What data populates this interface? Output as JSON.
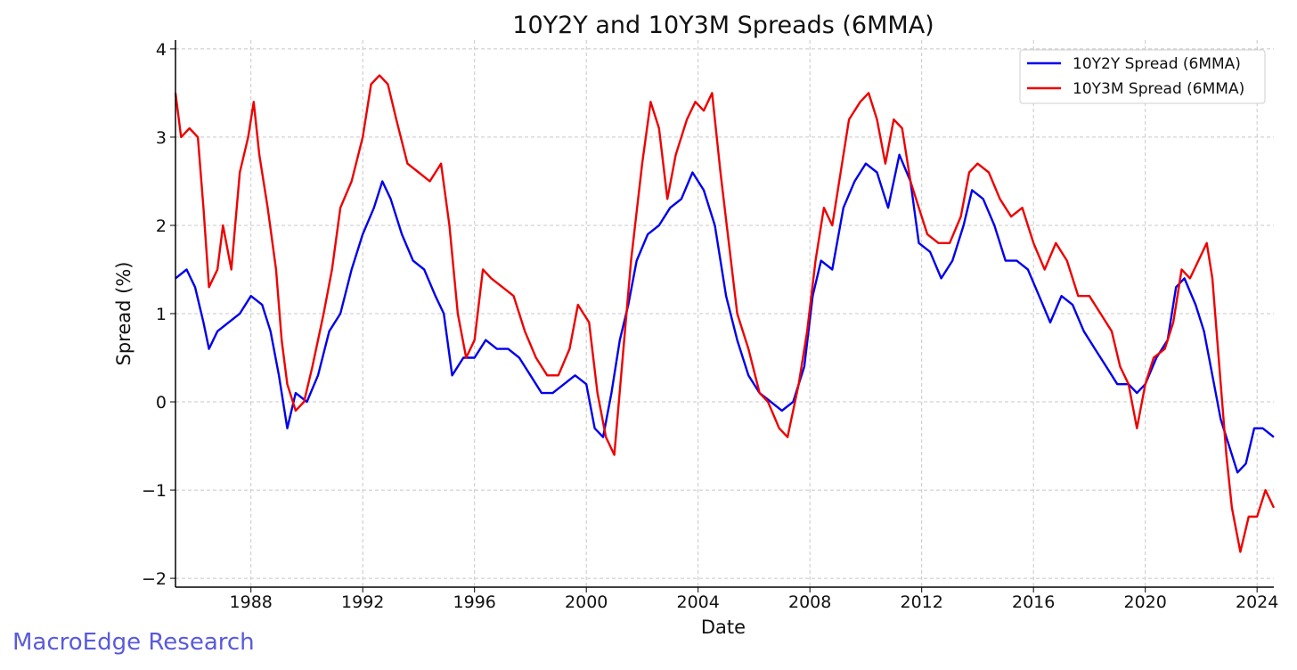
{
  "watermark": "MacroEdge Research",
  "chart_data": {
    "type": "line",
    "title": "10Y2Y and 10Y3M Spreads (6MMA)",
    "xlabel": "Date",
    "ylabel": "Spread (%)",
    "xlim": [
      1985.3,
      2024.6
    ],
    "ylim": [
      -2.1,
      4.1
    ],
    "xticks": [
      1988,
      1992,
      1996,
      2000,
      2004,
      2008,
      2012,
      2016,
      2020,
      2024
    ],
    "yticks": [
      -2,
      -1,
      0,
      1,
      2,
      3,
      4
    ],
    "ytick_labels": [
      "−2",
      "−1",
      "0",
      "1",
      "2",
      "3",
      "4"
    ],
    "grid": true,
    "legend_position": "top-right",
    "series": [
      {
        "name": "10Y2Y Spread (6MMA)",
        "color": "#0000ee",
        "points": [
          [
            1985.3,
            1.4
          ],
          [
            1985.7,
            1.5
          ],
          [
            1986.0,
            1.3
          ],
          [
            1986.3,
            0.9
          ],
          [
            1986.5,
            0.6
          ],
          [
            1986.8,
            0.8
          ],
          [
            1987.2,
            0.9
          ],
          [
            1987.6,
            1.0
          ],
          [
            1988.0,
            1.2
          ],
          [
            1988.4,
            1.1
          ],
          [
            1988.7,
            0.8
          ],
          [
            1989.0,
            0.3
          ],
          [
            1989.3,
            -0.3
          ],
          [
            1989.6,
            0.1
          ],
          [
            1990.0,
            0.0
          ],
          [
            1990.4,
            0.3
          ],
          [
            1990.8,
            0.8
          ],
          [
            1991.2,
            1.0
          ],
          [
            1991.6,
            1.5
          ],
          [
            1992.0,
            1.9
          ],
          [
            1992.4,
            2.2
          ],
          [
            1992.7,
            2.5
          ],
          [
            1993.0,
            2.3
          ],
          [
            1993.4,
            1.9
          ],
          [
            1993.8,
            1.6
          ],
          [
            1994.2,
            1.5
          ],
          [
            1994.6,
            1.2
          ],
          [
            1994.9,
            1.0
          ],
          [
            1995.2,
            0.3
          ],
          [
            1995.6,
            0.5
          ],
          [
            1996.0,
            0.5
          ],
          [
            1996.4,
            0.7
          ],
          [
            1996.8,
            0.6
          ],
          [
            1997.2,
            0.6
          ],
          [
            1997.6,
            0.5
          ],
          [
            1998.0,
            0.3
          ],
          [
            1998.4,
            0.1
          ],
          [
            1998.8,
            0.1
          ],
          [
            1999.2,
            0.2
          ],
          [
            1999.6,
            0.3
          ],
          [
            2000.0,
            0.2
          ],
          [
            2000.3,
            -0.3
          ],
          [
            2000.6,
            -0.4
          ],
          [
            2000.9,
            0.1
          ],
          [
            2001.2,
            0.7
          ],
          [
            2001.5,
            1.1
          ],
          [
            2001.8,
            1.6
          ],
          [
            2002.2,
            1.9
          ],
          [
            2002.6,
            2.0
          ],
          [
            2003.0,
            2.2
          ],
          [
            2003.4,
            2.3
          ],
          [
            2003.8,
            2.6
          ],
          [
            2004.2,
            2.4
          ],
          [
            2004.6,
            2.0
          ],
          [
            2005.0,
            1.2
          ],
          [
            2005.4,
            0.7
          ],
          [
            2005.8,
            0.3
          ],
          [
            2006.2,
            0.1
          ],
          [
            2006.6,
            0.0
          ],
          [
            2007.0,
            -0.1
          ],
          [
            2007.4,
            0.0
          ],
          [
            2007.8,
            0.4
          ],
          [
            2008.1,
            1.2
          ],
          [
            2008.4,
            1.6
          ],
          [
            2008.8,
            1.5
          ],
          [
            2009.2,
            2.2
          ],
          [
            2009.6,
            2.5
          ],
          [
            2010.0,
            2.7
          ],
          [
            2010.4,
            2.6
          ],
          [
            2010.8,
            2.2
          ],
          [
            2011.2,
            2.8
          ],
          [
            2011.6,
            2.5
          ],
          [
            2011.9,
            1.8
          ],
          [
            2012.3,
            1.7
          ],
          [
            2012.7,
            1.4
          ],
          [
            2013.1,
            1.6
          ],
          [
            2013.5,
            2.0
          ],
          [
            2013.8,
            2.4
          ],
          [
            2014.2,
            2.3
          ],
          [
            2014.6,
            2.0
          ],
          [
            2015.0,
            1.6
          ],
          [
            2015.4,
            1.6
          ],
          [
            2015.8,
            1.5
          ],
          [
            2016.2,
            1.2
          ],
          [
            2016.6,
            0.9
          ],
          [
            2017.0,
            1.2
          ],
          [
            2017.4,
            1.1
          ],
          [
            2017.8,
            0.8
          ],
          [
            2018.2,
            0.6
          ],
          [
            2018.6,
            0.4
          ],
          [
            2019.0,
            0.2
          ],
          [
            2019.4,
            0.2
          ],
          [
            2019.7,
            0.1
          ],
          [
            2020.0,
            0.2
          ],
          [
            2020.4,
            0.5
          ],
          [
            2020.8,
            0.7
          ],
          [
            2021.1,
            1.3
          ],
          [
            2021.4,
            1.4
          ],
          [
            2021.8,
            1.1
          ],
          [
            2022.1,
            0.8
          ],
          [
            2022.4,
            0.3
          ],
          [
            2022.7,
            -0.2
          ],
          [
            2023.0,
            -0.5
          ],
          [
            2023.3,
            -0.8
          ],
          [
            2023.6,
            -0.7
          ],
          [
            2023.9,
            -0.3
          ],
          [
            2024.2,
            -0.3
          ],
          [
            2024.6,
            -0.4
          ]
        ]
      },
      {
        "name": "10Y3M Spread (6MMA)",
        "color": "#ee0000",
        "points": [
          [
            1985.3,
            3.5
          ],
          [
            1985.5,
            3.0
          ],
          [
            1985.8,
            3.1
          ],
          [
            1986.1,
            3.0
          ],
          [
            1986.3,
            2.2
          ],
          [
            1986.5,
            1.3
          ],
          [
            1986.8,
            1.5
          ],
          [
            1987.0,
            2.0
          ],
          [
            1987.3,
            1.5
          ],
          [
            1987.6,
            2.6
          ],
          [
            1987.9,
            3.0
          ],
          [
            1988.1,
            3.4
          ],
          [
            1988.3,
            2.8
          ],
          [
            1988.6,
            2.2
          ],
          [
            1988.9,
            1.5
          ],
          [
            1989.1,
            0.7
          ],
          [
            1989.3,
            0.2
          ],
          [
            1989.6,
            -0.1
          ],
          [
            1989.9,
            0.0
          ],
          [
            1990.2,
            0.4
          ],
          [
            1990.6,
            1.0
          ],
          [
            1990.9,
            1.5
          ],
          [
            1991.2,
            2.2
          ],
          [
            1991.6,
            2.5
          ],
          [
            1992.0,
            3.0
          ],
          [
            1992.3,
            3.6
          ],
          [
            1992.6,
            3.7
          ],
          [
            1992.9,
            3.6
          ],
          [
            1993.2,
            3.2
          ],
          [
            1993.6,
            2.7
          ],
          [
            1994.0,
            2.6
          ],
          [
            1994.4,
            2.5
          ],
          [
            1994.8,
            2.7
          ],
          [
            1995.1,
            2.0
          ],
          [
            1995.4,
            1.0
          ],
          [
            1995.7,
            0.5
          ],
          [
            1996.0,
            0.7
          ],
          [
            1996.3,
            1.5
          ],
          [
            1996.6,
            1.4
          ],
          [
            1997.0,
            1.3
          ],
          [
            1997.4,
            1.2
          ],
          [
            1997.8,
            0.8
          ],
          [
            1998.2,
            0.5
          ],
          [
            1998.6,
            0.3
          ],
          [
            1999.0,
            0.3
          ],
          [
            1999.4,
            0.6
          ],
          [
            1999.7,
            1.1
          ],
          [
            2000.1,
            0.9
          ],
          [
            2000.4,
            0.1
          ],
          [
            2000.7,
            -0.4
          ],
          [
            2001.0,
            -0.6
          ],
          [
            2001.3,
            0.5
          ],
          [
            2001.6,
            1.6
          ],
          [
            2002.0,
            2.7
          ],
          [
            2002.3,
            3.4
          ],
          [
            2002.6,
            3.1
          ],
          [
            2002.9,
            2.3
          ],
          [
            2003.2,
            2.8
          ],
          [
            2003.6,
            3.2
          ],
          [
            2003.9,
            3.4
          ],
          [
            2004.2,
            3.3
          ],
          [
            2004.5,
            3.5
          ],
          [
            2004.8,
            2.6
          ],
          [
            2005.1,
            1.8
          ],
          [
            2005.4,
            1.0
          ],
          [
            2005.8,
            0.6
          ],
          [
            2006.2,
            0.1
          ],
          [
            2006.5,
            0.0
          ],
          [
            2006.9,
            -0.3
          ],
          [
            2007.2,
            -0.4
          ],
          [
            2007.6,
            0.2
          ],
          [
            2007.9,
            0.8
          ],
          [
            2008.2,
            1.6
          ],
          [
            2008.5,
            2.2
          ],
          [
            2008.8,
            2.0
          ],
          [
            2009.1,
            2.6
          ],
          [
            2009.4,
            3.2
          ],
          [
            2009.8,
            3.4
          ],
          [
            2010.1,
            3.5
          ],
          [
            2010.4,
            3.2
          ],
          [
            2010.7,
            2.7
          ],
          [
            2011.0,
            3.2
          ],
          [
            2011.3,
            3.1
          ],
          [
            2011.6,
            2.5
          ],
          [
            2011.9,
            2.2
          ],
          [
            2012.2,
            1.9
          ],
          [
            2012.6,
            1.8
          ],
          [
            2013.0,
            1.8
          ],
          [
            2013.4,
            2.1
          ],
          [
            2013.7,
            2.6
          ],
          [
            2014.0,
            2.7
          ],
          [
            2014.4,
            2.6
          ],
          [
            2014.8,
            2.3
          ],
          [
            2015.2,
            2.1
          ],
          [
            2015.6,
            2.2
          ],
          [
            2016.0,
            1.8
          ],
          [
            2016.4,
            1.5
          ],
          [
            2016.8,
            1.8
          ],
          [
            2017.2,
            1.6
          ],
          [
            2017.6,
            1.2
          ],
          [
            2018.0,
            1.2
          ],
          [
            2018.4,
            1.0
          ],
          [
            2018.8,
            0.8
          ],
          [
            2019.1,
            0.4
          ],
          [
            2019.4,
            0.2
          ],
          [
            2019.7,
            -0.3
          ],
          [
            2020.0,
            0.2
          ],
          [
            2020.3,
            0.5
          ],
          [
            2020.7,
            0.6
          ],
          [
            2021.0,
            0.9
          ],
          [
            2021.3,
            1.5
          ],
          [
            2021.6,
            1.4
          ],
          [
            2021.9,
            1.6
          ],
          [
            2022.2,
            1.8
          ],
          [
            2022.4,
            1.4
          ],
          [
            2022.7,
            0.2
          ],
          [
            2022.9,
            -0.6
          ],
          [
            2023.1,
            -1.2
          ],
          [
            2023.4,
            -1.7
          ],
          [
            2023.7,
            -1.3
          ],
          [
            2024.0,
            -1.3
          ],
          [
            2024.3,
            -1.0
          ],
          [
            2024.6,
            -1.2
          ]
        ]
      }
    ]
  }
}
